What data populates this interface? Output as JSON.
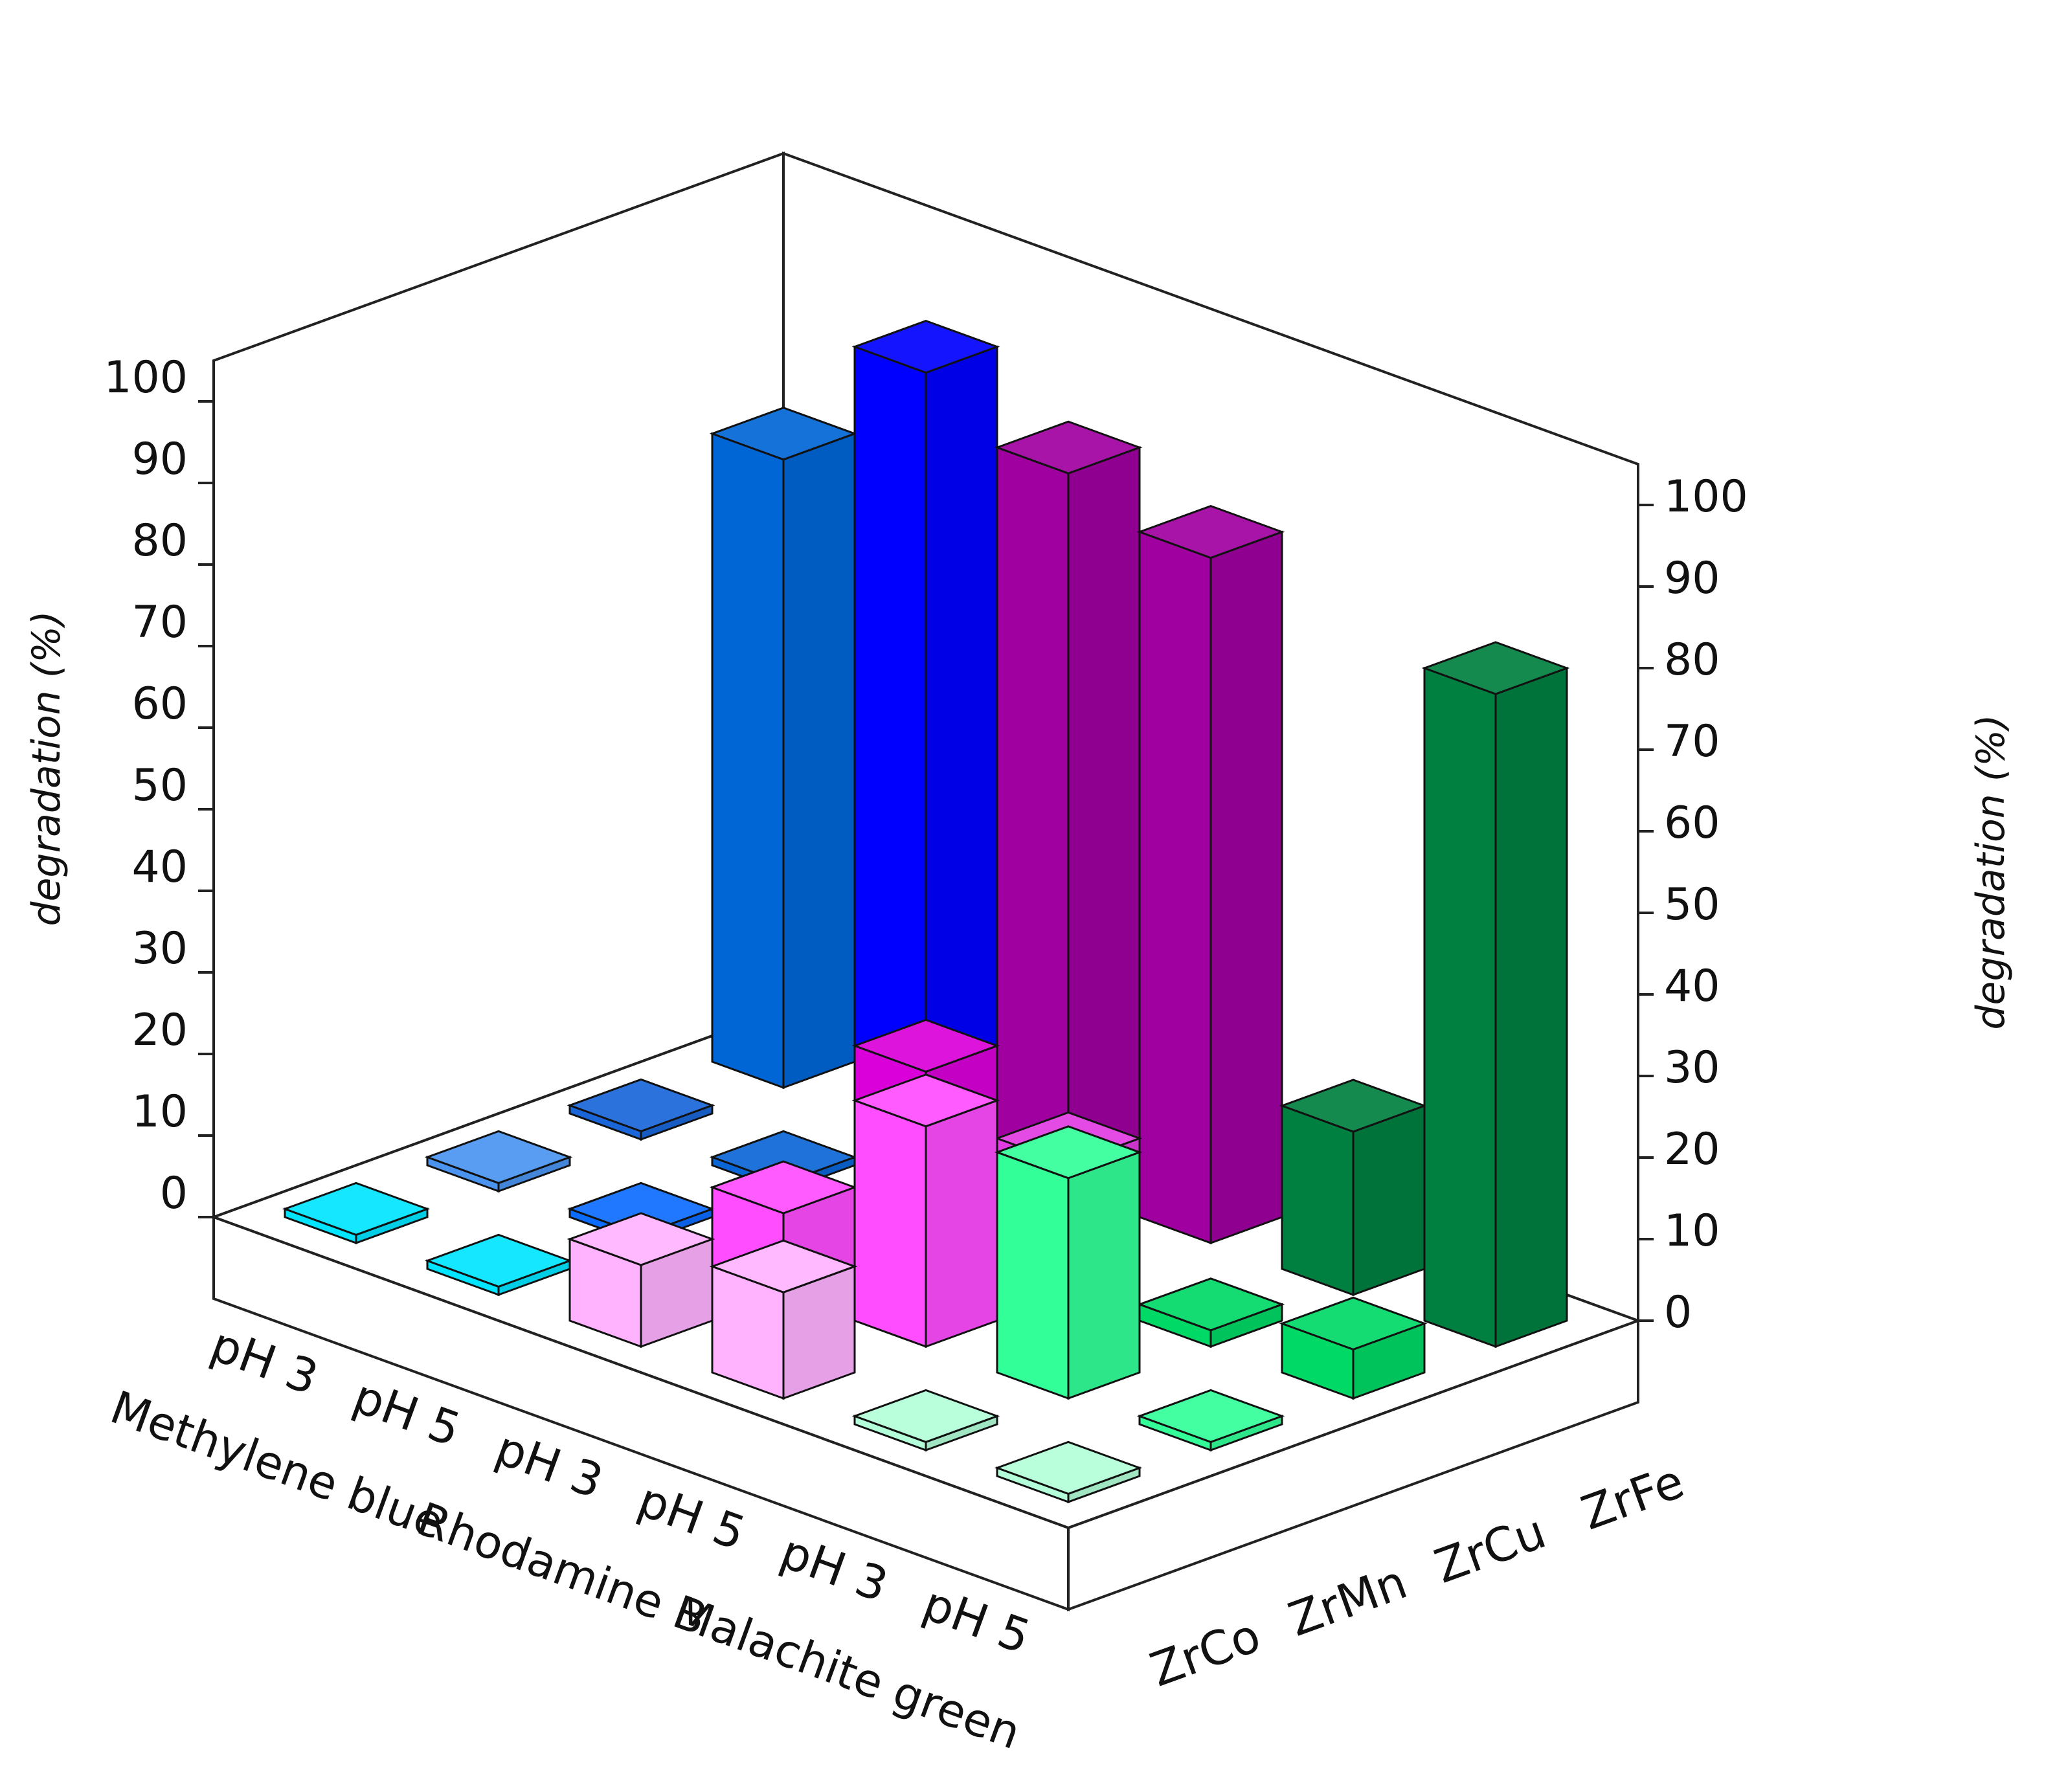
{
  "chart_data": {
    "type": "bar",
    "projection": "3d",
    "ylabel": "degradation (%)",
    "ylim": [
      0,
      100
    ],
    "y_ticks": [
      0,
      10,
      20,
      30,
      40,
      50,
      60,
      70,
      80,
      90,
      100
    ],
    "categories": [
      "pH 3",
      "pH 5",
      "pH 3",
      "pH 5",
      "pH 3",
      "pH 5"
    ],
    "category_groups": [
      {
        "label": "Methylene blue",
        "span": [
          0,
          1
        ]
      },
      {
        "label": "Rhodamine B",
        "span": [
          2,
          3
        ]
      },
      {
        "label": "Malachite green",
        "span": [
          4,
          5
        ]
      }
    ],
    "depth_categories": [
      "ZrCo",
      "ZrMn",
      "ZrCu",
      "ZrFe"
    ],
    "series": [
      {
        "depth": "ZrCo",
        "values": [
          0,
          0,
          10,
          13,
          0,
          0
        ]
      },
      {
        "depth": "ZrMn",
        "values": [
          0,
          0,
          10,
          27,
          27,
          0
        ]
      },
      {
        "depth": "ZrCu",
        "values": [
          0,
          0,
          21,
          16,
          2,
          6
        ]
      },
      {
        "depth": "ZrFe",
        "values": [
          77,
          94,
          88,
          84,
          20,
          80
        ]
      }
    ],
    "colors": [
      [
        "#00e5ff",
        "#00e5ff",
        "#ffb3ff",
        "#ffb3ff",
        "#b3ffd9",
        "#b3ffd9"
      ],
      [
        "#4a94f0",
        "#0b6cff",
        "#ff4dff",
        "#ff4dff",
        "#33ff99",
        "#33ff99"
      ],
      [
        "#1a66d9",
        "#0a66d6",
        "#d900d9",
        "#e23be2",
        "#00d966",
        "#00d966"
      ],
      [
        "#0066d6",
        "#0000ff",
        "#a000a0",
        "#a000a0",
        "#008040",
        "#008040"
      ]
    ],
    "grid": false
  }
}
